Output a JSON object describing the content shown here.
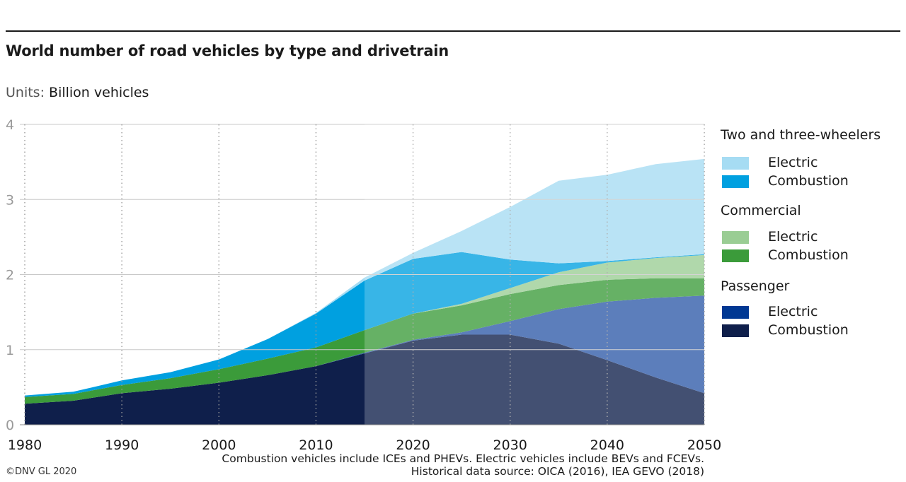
{
  "title": "World number of road vehicles by type and drivetrain",
  "units_label": "Units:",
  "units_value": "Billion vehicles",
  "footnote_1": "Combustion vehicles include ICEs and PHEVs. Electric vehicles include BEVs and FCEVs.",
  "footnote_2": "Historical data source: OICA (2016), IEA GEVO (2018)",
  "copyright": "©DNV GL 2020",
  "legend": {
    "group_two_three": "Two and three-wheelers",
    "group_commercial": "Commercial",
    "group_passenger": "Passenger",
    "electric": "Electric",
    "combustion": "Combustion"
  },
  "chart_data": {
    "type": "area",
    "stacked": true,
    "x": [
      1980,
      1985,
      1990,
      1995,
      2000,
      2005,
      2010,
      2015,
      2020,
      2025,
      2030,
      2035,
      2040,
      2045,
      2050
    ],
    "xlim": [
      1980,
      2050
    ],
    "xticks": [
      1980,
      1990,
      2000,
      2010,
      2020,
      2030,
      2040,
      2050
    ],
    "ylim": [
      0,
      4
    ],
    "yticks": [
      0,
      1,
      2,
      3,
      4
    ],
    "historical_until": 2015,
    "grid": "horizontal solid, vertical dotted",
    "legend_position": "right",
    "series": [
      {
        "group": "Passenger",
        "name": "Combustion",
        "color": "#0f1f4b",
        "values": [
          0.28,
          0.32,
          0.42,
          0.48,
          0.56,
          0.66,
          0.78,
          0.95,
          1.12,
          1.2,
          1.2,
          1.08,
          0.86,
          0.63,
          0.42
        ]
      },
      {
        "group": "Passenger",
        "name": "Electric",
        "color": "#2f5aa8",
        "values": [
          0,
          0,
          0,
          0,
          0,
          0,
          0,
          0.01,
          0.01,
          0.03,
          0.18,
          0.46,
          0.78,
          1.06,
          1.3
        ]
      },
      {
        "group": "Commercial",
        "name": "Combustion",
        "color": "#3b9b3a",
        "values": [
          0.09,
          0.09,
          0.11,
          0.14,
          0.18,
          0.22,
          0.25,
          0.3,
          0.35,
          0.36,
          0.36,
          0.32,
          0.29,
          0.26,
          0.23
        ]
      },
      {
        "group": "Commercial",
        "name": "Electric",
        "color": "#9acd94",
        "values": [
          0,
          0,
          0,
          0,
          0,
          0,
          0,
          0,
          0,
          0.02,
          0.08,
          0.17,
          0.23,
          0.27,
          0.31
        ]
      },
      {
        "group": "Two and three-wheelers",
        "name": "Combustion",
        "color": "#00a0e0",
        "values": [
          0.02,
          0.03,
          0.06,
          0.08,
          0.13,
          0.26,
          0.45,
          0.66,
          0.73,
          0.69,
          0.38,
          0.12,
          0.02,
          0.01,
          0.01
        ]
      },
      {
        "group": "Two and three-wheelers",
        "name": "Electric",
        "color": "#a6dcf3",
        "values": [
          0,
          0,
          0,
          0,
          0,
          0,
          0.01,
          0.04,
          0.08,
          0.28,
          0.7,
          1.1,
          1.15,
          1.24,
          1.27
        ]
      }
    ]
  }
}
